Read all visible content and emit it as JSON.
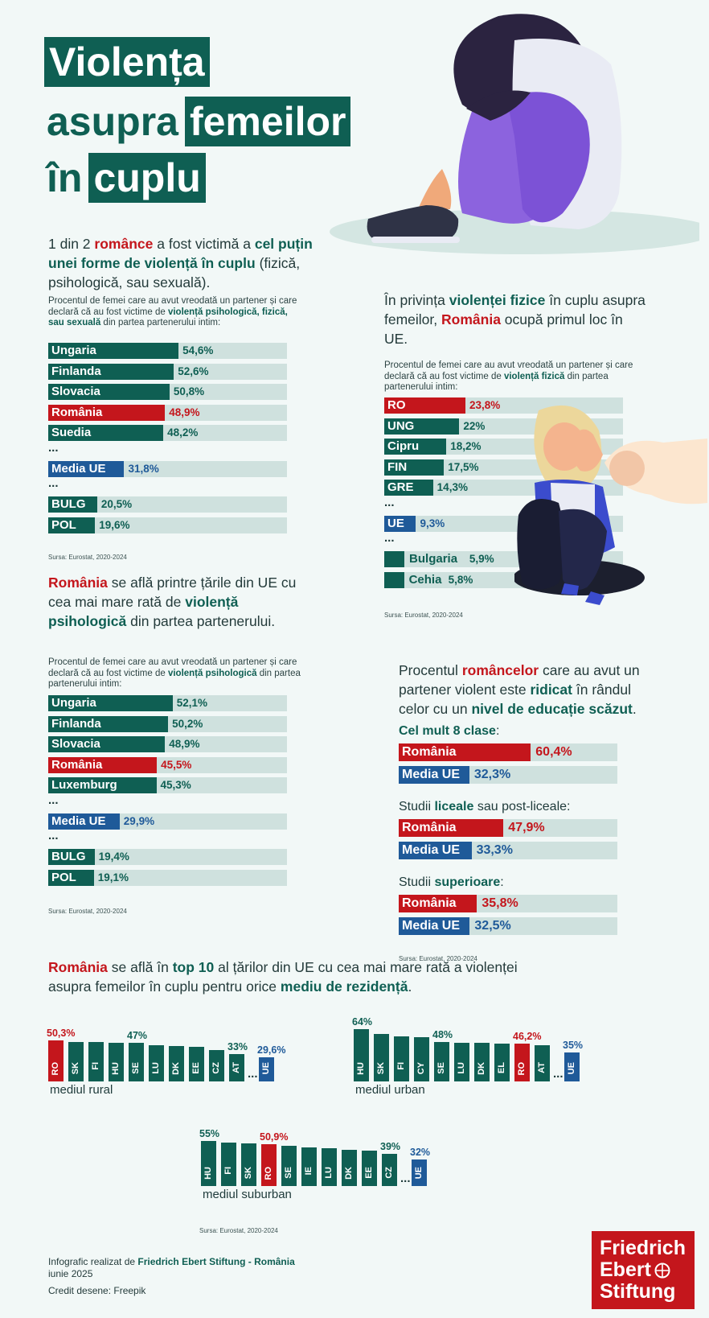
{
  "title": {
    "line1": "Violența",
    "line2a": "asupra",
    "line2b": "femeilor",
    "line3a": "în",
    "line3b": "cuplu"
  },
  "sec1": {
    "lead_pre": "1 din 2",
    "lead_red": "românce",
    "lead_mid": "a fost victimă a",
    "lead_bold": "cel puțin unei forme de violență în cuplu",
    "lead_post": "(fizică, psihologică, sau sexuală).",
    "desc_pre": "Procentul de femei care au avut vreodată un partener și care declară că au fost victime de",
    "desc_bold": "violență psihologică, fizică, sau sexuală",
    "desc_post": "din partea partenerului intim:",
    "source": "Sursa: Eurostat, 2020-2024"
  },
  "sec2": {
    "lead_pre": "În privința",
    "lead_bold": "violenței fizice",
    "lead_mid": "în cuplu asupra femeilor,",
    "lead_red": "România",
    "lead_post": "ocupă primul loc în UE.",
    "desc_pre": "Procentul de femei care au avut vreodată un partener și care declară că au fost victime de",
    "desc_bold": "violență fizică",
    "desc_post": "din partea partenerului intim:",
    "source": "Sursa: Eurostat, 2020-2024"
  },
  "sec3": {
    "lead_red": "România",
    "lead_mid": "se află printre țările din UE cu cea mai mare rată de",
    "lead_bold": "violență psihologică",
    "lead_post": "din partea partenerului.",
    "desc_pre": "Procentul de femei care au avut vreodată un partener și care declară că au fost victime de",
    "desc_bold": "violență psihologică",
    "desc_post": "din partea partenerului intim:",
    "source": "Sursa: Eurostat, 2020-2024"
  },
  "sec4": {
    "lead_pre": "Procentul",
    "lead_red": "româncelor",
    "lead_mid": "care au avut un partener violent este",
    "lead_bold1": "ridicat",
    "lead_mid2": "în rândul celor cu un",
    "lead_bold2": "nivel de educație scăzut",
    "lead_post": ".",
    "source": "Sursa: Eurostat, 2020-2024"
  },
  "sec5": {
    "lead_red": "România",
    "lead_mid": "se află în",
    "lead_bold1": "top 10",
    "lead_mid2": "al țărilor din UE cu cea mai mare rată a violenței asupra femeilor în cuplu pentru orice",
    "lead_bold2": "mediu de rezidență",
    "lead_post": ".",
    "source": "Sursa: Eurostat, 2020-2024"
  },
  "footer": {
    "line1_pre": "Infografic realizat de",
    "line1_bold": "Friedrich Ebert Stiftung - România",
    "line2": "iunie 2025",
    "line3": "Credit desene: Freepik",
    "logo1": "Friedrich",
    "logo2": "Ebert",
    "logo3": "Stiftung"
  },
  "colors": {
    "green": "#0f5f53",
    "red": "#c4161c",
    "blue": "#1f5a99",
    "track": "#cfe1de"
  },
  "chart_data": [
    {
      "type": "bar",
      "id": "any",
      "categories": [
        "Ungaria",
        "Finlanda",
        "Slovacia",
        "România",
        "Suedia",
        "Media UE",
        "BULG",
        "POL"
      ],
      "value_labels": [
        "54,6%",
        "52,6%",
        "50,8%",
        "48,9%",
        "48,2%",
        "31,8%",
        "20,5%",
        "19,6%"
      ],
      "values": [
        54.6,
        52.6,
        50.8,
        48.9,
        48.2,
        31.8,
        20.5,
        19.6
      ],
      "kinds": [
        "g",
        "g",
        "g",
        "r",
        "g",
        "b",
        "g",
        "g"
      ],
      "ylim": [
        0,
        100
      ]
    },
    {
      "type": "bar",
      "id": "physical",
      "categories": [
        "RO",
        "UNG",
        "Cipru",
        "FIN",
        "GRE",
        "UE",
        "Bulgaria",
        "Cehia"
      ],
      "value_labels": [
        "23,8%",
        "22%",
        "18,2%",
        "17,5%",
        "14,3%",
        "9,3%",
        "5,9%",
        "5,8%"
      ],
      "values": [
        23.8,
        22,
        18.2,
        17.5,
        14.3,
        9.3,
        5.9,
        5.8
      ],
      "kinds": [
        "r",
        "g",
        "g",
        "g",
        "g",
        "b",
        "g",
        "g"
      ],
      "ylim": [
        0,
        70
      ]
    },
    {
      "type": "bar",
      "id": "psychological",
      "categories": [
        "Ungaria",
        "Finlanda",
        "Slovacia",
        "România",
        "Luxemburg",
        "Media UE",
        "BULG",
        "POL"
      ],
      "value_labels": [
        "52,1%",
        "50,2%",
        "48,9%",
        "45,5%",
        "45,3%",
        "29,9%",
        "19,4%",
        "19,1%"
      ],
      "values": [
        52.1,
        50.2,
        48.9,
        45.5,
        45.3,
        29.9,
        19.4,
        19.1
      ],
      "kinds": [
        "g",
        "g",
        "g",
        "r",
        "g",
        "b",
        "g",
        "g"
      ],
      "ylim": [
        0,
        100
      ]
    },
    {
      "type": "bar",
      "id": "education",
      "groups": [
        {
          "title_pre": "",
          "title_bold": "Cel mult 8 clase",
          "title_post": ":",
          "rows": [
            {
              "name": "România",
              "label": "60,4%",
              "value": 60.4,
              "kind": "r"
            },
            {
              "name": "Media UE",
              "label": "32,3%",
              "value": 32.3,
              "kind": "b"
            }
          ]
        },
        {
          "title_pre": "Studii",
          "title_bold": "liceale",
          "title_post": "sau post-liceale:",
          "rows": [
            {
              "name": "România",
              "label": "47,9%",
              "value": 47.9,
              "kind": "r"
            },
            {
              "name": "Media UE",
              "label": "33,3%",
              "value": 33.3,
              "kind": "b"
            }
          ]
        },
        {
          "title_pre": "Studii",
          "title_bold": "superioare",
          "title_post": ":",
          "rows": [
            {
              "name": "România",
              "label": "35,8%",
              "value": 35.8,
              "kind": "r"
            },
            {
              "name": "Media UE",
              "label": "32,5%",
              "value": 32.5,
              "kind": "b"
            }
          ]
        }
      ],
      "ylim": [
        0,
        100
      ]
    },
    {
      "type": "bar",
      "id": "rural",
      "title": "mediul rural",
      "categories": [
        "RO",
        "SK",
        "FI",
        "HU",
        "SE",
        "LU",
        "DK",
        "EE",
        "CZ",
        "AT",
        "UE"
      ],
      "values": [
        50.3,
        48.5,
        48,
        47.5,
        47,
        44.5,
        43,
        42,
        38,
        33,
        29.6
      ],
      "labels": [
        "50,3%",
        "",
        "",
        "",
        "47%",
        "",
        "",
        "",
        "",
        "33%",
        "29,6%"
      ],
      "kinds": [
        "r",
        "g",
        "g",
        "g",
        "g",
        "g",
        "g",
        "g",
        "g",
        "g",
        "b"
      ]
    },
    {
      "type": "bar",
      "id": "urban",
      "title": "mediul urban",
      "categories": [
        "HU",
        "SK",
        "FI",
        "CY",
        "SE",
        "LU",
        "DK",
        "EL",
        "RO",
        "AT",
        "UE"
      ],
      "values": [
        64,
        58,
        55,
        54,
        48,
        47.5,
        47,
        46.5,
        46.2,
        44,
        35
      ],
      "labels": [
        "64%",
        "",
        "",
        "",
        "48%",
        "",
        "",
        "",
        "46,2%",
        "",
        "35%"
      ],
      "kinds": [
        "g",
        "g",
        "g",
        "g",
        "g",
        "g",
        "g",
        "g",
        "r",
        "g",
        "b"
      ]
    },
    {
      "type": "bar",
      "id": "suburban",
      "title": "mediul suburban",
      "categories": [
        "HU",
        "FI",
        "SK",
        "RO",
        "SE",
        "IE",
        "LU",
        "DK",
        "EE",
        "CZ",
        "UE"
      ],
      "values": [
        55,
        53,
        52,
        50.9,
        49,
        47,
        46,
        44.5,
        43,
        39,
        32
      ],
      "labels": [
        "55%",
        "",
        "",
        "50,9%",
        "",
        "",
        "",
        "",
        "",
        "39%",
        "32%"
      ],
      "kinds": [
        "g",
        "g",
        "g",
        "r",
        "g",
        "g",
        "g",
        "g",
        "g",
        "g",
        "b"
      ]
    }
  ]
}
